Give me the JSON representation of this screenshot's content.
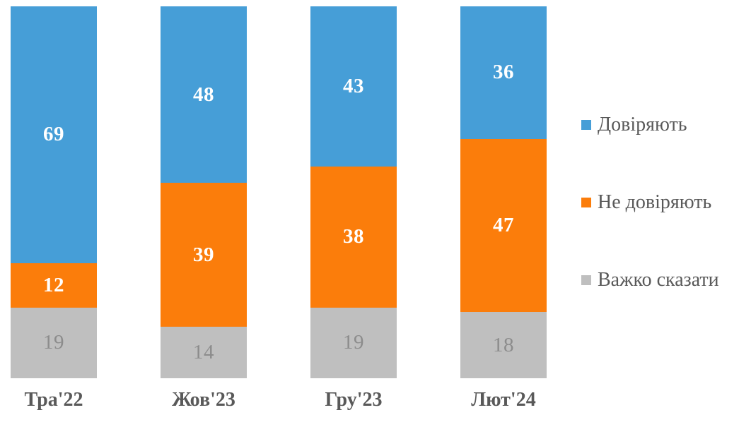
{
  "chart_data": {
    "type": "bar",
    "variant": "stacked-column-100",
    "title": "",
    "xlabel": "",
    "ylabel": "",
    "grid": false,
    "legend_position": "right",
    "value_labels": "inside-center",
    "categories": [
      "Тра'22",
      "Жов'23",
      "Гру'23",
      "Лют'24"
    ],
    "series": [
      {
        "name": "Довіряють",
        "values": [
          69,
          48,
          43,
          36
        ],
        "color": "#469ED7",
        "label_color": "#FFFFFF",
        "label_weight": "bold"
      },
      {
        "name": "Не довіряють",
        "values": [
          12,
          39,
          38,
          47
        ],
        "color": "#FB7D0B",
        "label_color": "#FFFFFF",
        "label_weight": "bold"
      },
      {
        "name": "Важко сказати",
        "values": [
          19,
          14,
          19,
          18
        ],
        "color": "#BFBFBF",
        "label_color": "#8C8C8C",
        "label_weight": "normal"
      }
    ],
    "category_label_color": "#595959",
    "legend_text_color": "#595959",
    "background_color": "#FFFFFF"
  }
}
